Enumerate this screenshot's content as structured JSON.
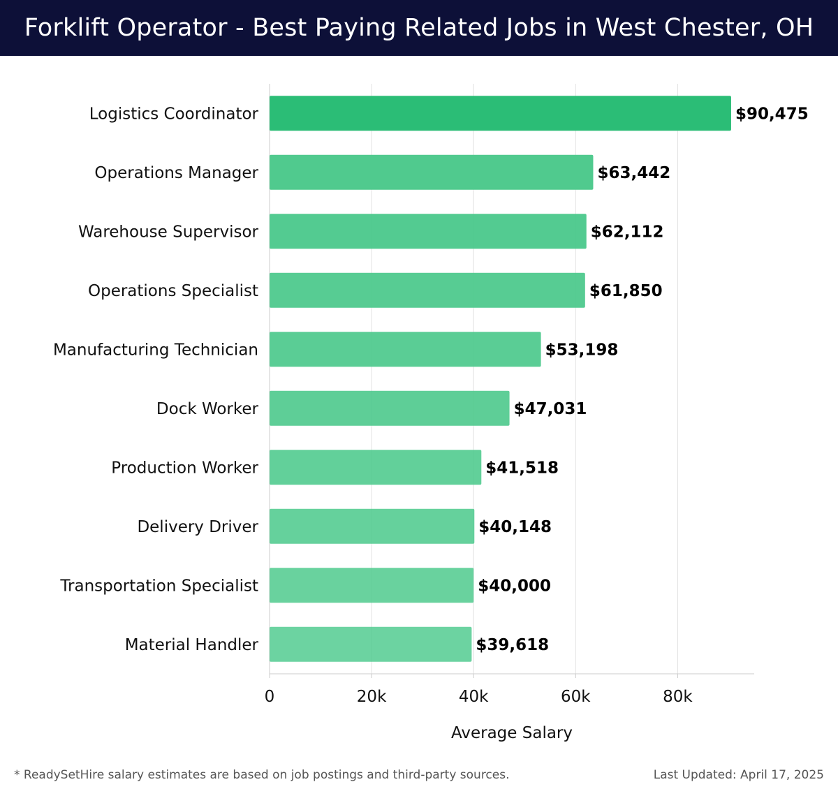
{
  "header": {
    "title": "Forklift Operator - Best Paying Related Jobs in West Chester, OH"
  },
  "chart_data": {
    "type": "bar",
    "orientation": "horizontal",
    "title": "Forklift Operator - Best Paying Related Jobs in West Chester, OH",
    "xlabel": "Average Salary",
    "ylabel": "",
    "xlim": [
      0,
      95000
    ],
    "xticks": [
      0,
      20000,
      40000,
      60000,
      80000
    ],
    "xtick_labels": [
      "0",
      "20k",
      "40k",
      "60k",
      "80k"
    ],
    "grid": "vertical",
    "legend": "none",
    "categories": [
      "Logistics Coordinator",
      "Operations Manager",
      "Warehouse Supervisor",
      "Operations Specialist",
      "Manufacturing Technician",
      "Dock Worker",
      "Production Worker",
      "Delivery Driver",
      "Transportation Specialist",
      "Material Handler"
    ],
    "values": [
      90475,
      63442,
      62112,
      61850,
      53198,
      47031,
      41518,
      40148,
      40000,
      39618
    ],
    "value_labels": [
      "$90,475",
      "$63,442",
      "$62,112",
      "$61,850",
      "$53,198",
      "$47,031",
      "$41,518",
      "$40,148",
      "$40,000",
      "$39,618"
    ],
    "colors": {
      "top_bar": "#2bbd76",
      "bar": "#4cc98c",
      "grid": "#e2e2e2",
      "axis": "#cccccc"
    }
  },
  "footer": {
    "note": "* ReadySetHire salary estimates are based on job postings and third-party sources.",
    "last_updated": "Last Updated: April 17, 2025"
  }
}
